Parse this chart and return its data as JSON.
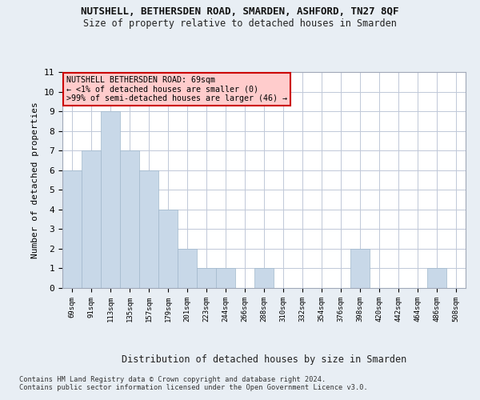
{
  "title": "NUTSHELL, BETHERSDEN ROAD, SMARDEN, ASHFORD, TN27 8QF",
  "subtitle": "Size of property relative to detached houses in Smarden",
  "xlabel": "Distribution of detached houses by size in Smarden",
  "ylabel": "Number of detached properties",
  "categories": [
    "69sqm",
    "91sqm",
    "113sqm",
    "135sqm",
    "157sqm",
    "179sqm",
    "201sqm",
    "223sqm",
    "244sqm",
    "266sqm",
    "288sqm",
    "310sqm",
    "332sqm",
    "354sqm",
    "376sqm",
    "398sqm",
    "420sqm",
    "442sqm",
    "464sqm",
    "486sqm",
    "508sqm"
  ],
  "values": [
    6,
    7,
    9,
    7,
    6,
    4,
    2,
    1,
    1,
    0,
    1,
    0,
    0,
    0,
    0,
    2,
    0,
    0,
    0,
    1,
    0
  ],
  "bar_color": "#c8d8e8",
  "bar_edge_color": "#a0b8cc",
  "annotation_text": "NUTSHELL BETHERSDEN ROAD: 69sqm\n← <1% of detached houses are smaller (0)\n>99% of semi-detached houses are larger (46) →",
  "annotation_box_color": "#ffcccc",
  "annotation_box_edge": "#cc0000",
  "ylim": [
    0,
    11
  ],
  "yticks": [
    0,
    1,
    2,
    3,
    4,
    5,
    6,
    7,
    8,
    9,
    10,
    11
  ],
  "footer": "Contains HM Land Registry data © Crown copyright and database right 2024.\nContains public sector information licensed under the Open Government Licence v3.0.",
  "background_color": "#e8eef4",
  "plot_background": "#ffffff",
  "grid_color": "#c0c8d8"
}
